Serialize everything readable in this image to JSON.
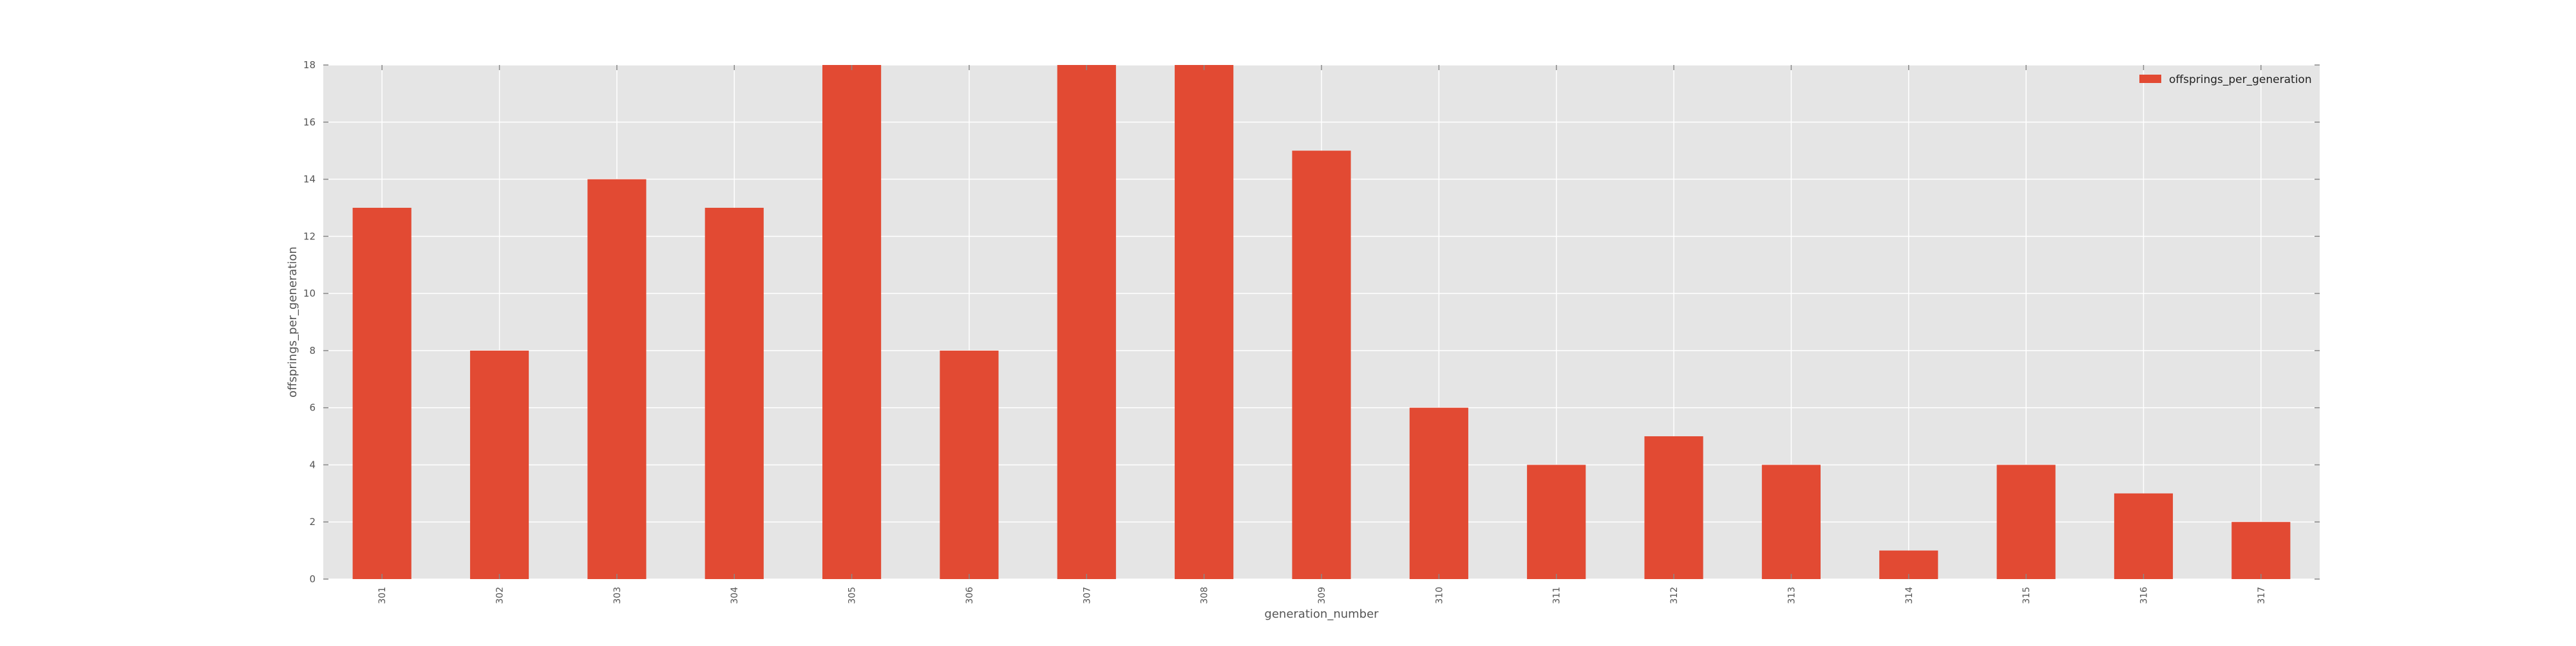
{
  "chart_data": {
    "type": "bar",
    "xlabel": "generation_number",
    "ylabel": "offsprings_per_generation",
    "categories": [
      "301",
      "302",
      "303",
      "304",
      "305",
      "306",
      "307",
      "308",
      "309",
      "310",
      "311",
      "312",
      "313",
      "314",
      "315",
      "316",
      "317"
    ],
    "series": [
      {
        "name": "offsprings_per_generation",
        "values": [
          13,
          8,
          14,
          13,
          18,
          8,
          18,
          18,
          15,
          6,
          4,
          5,
          4,
          1,
          4,
          3,
          2
        ],
        "color": "#E24A33"
      }
    ],
    "ylim": [
      0,
      18
    ],
    "yticks": [
      0,
      2,
      4,
      6,
      8,
      10,
      12,
      14,
      16,
      18
    ],
    "grid": true,
    "legend_position": "top-right",
    "plot_background": "#E5E5E5",
    "grid_color": "#FFFFFF"
  }
}
